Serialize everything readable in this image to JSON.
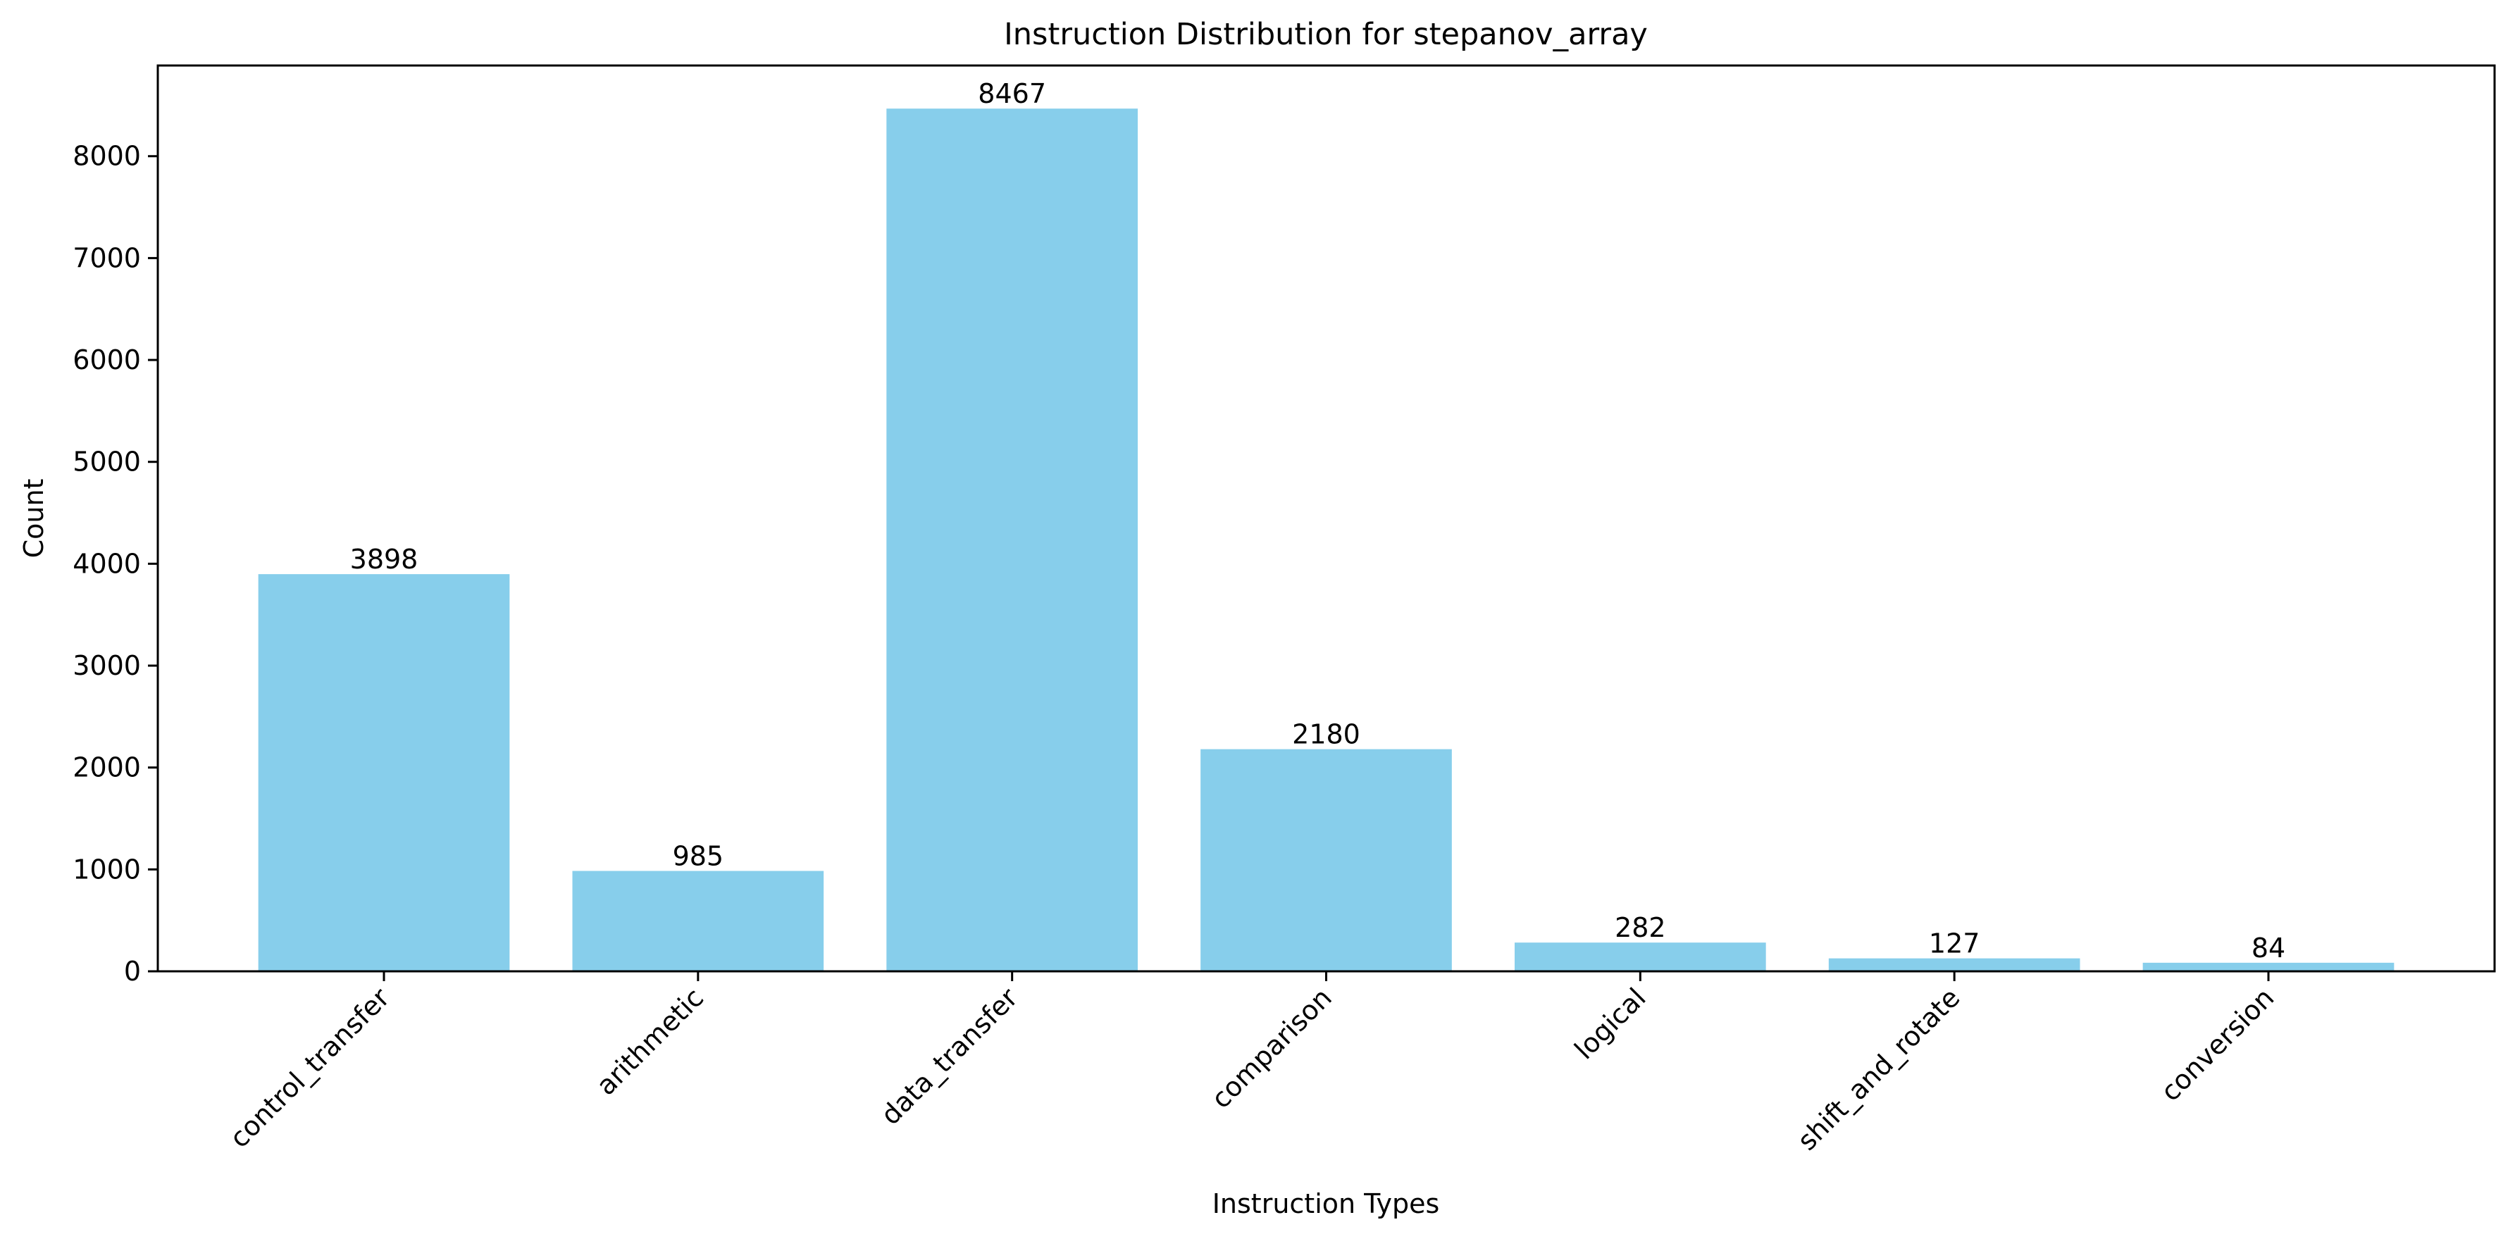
{
  "chart_data": {
    "type": "bar",
    "title": "Instruction Distribution for stepanov_array",
    "xlabel": "Instruction Types",
    "ylabel": "Count",
    "categories": [
      "control_transfer",
      "arithmetic",
      "data_transfer",
      "comparison",
      "logical",
      "shift_and_rotate",
      "conversion"
    ],
    "values": [
      3898,
      985,
      8467,
      2180,
      282,
      127,
      84
    ],
    "data_labels": [
      "3898",
      "985",
      "8467",
      "2180",
      "282",
      "127",
      "84"
    ],
    "ylim": [
      0,
      8890
    ],
    "yticks": [
      0,
      1000,
      2000,
      3000,
      4000,
      5000,
      6000,
      7000,
      8000
    ],
    "ytick_labels": [
      "0",
      "1000",
      "2000",
      "3000",
      "4000",
      "5000",
      "6000",
      "7000",
      "8000"
    ],
    "grid": false,
    "legend": "none",
    "bar_color": "#87CEEB"
  }
}
